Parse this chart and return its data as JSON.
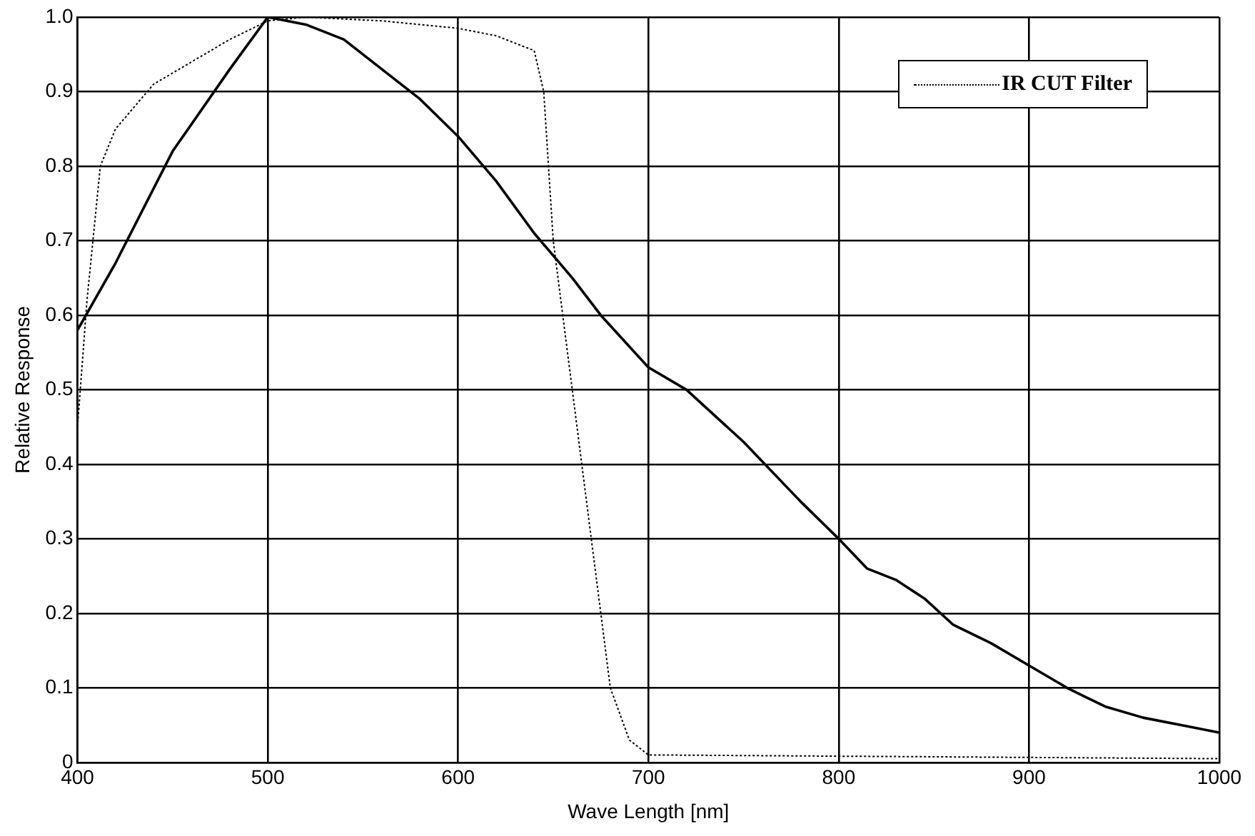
{
  "chart_data": {
    "type": "line",
    "xlabel": "Wave Length [nm]",
    "ylabel": "Relative Response",
    "xlim": [
      400,
      1000
    ],
    "xticks": [
      400,
      500,
      600,
      700,
      800,
      900,
      1000
    ],
    "ylim": [
      0,
      1
    ],
    "yticks": [
      0,
      {
        "value": 0.1,
        "label": "0.1"
      },
      {
        "value": 0.2,
        "label": "0.2"
      },
      {
        "value": 0.3,
        "label": "0.3"
      },
      {
        "value": 0.4,
        "label": "0.4"
      },
      {
        "value": 0.5,
        "label": "0.5"
      },
      {
        "value": 0.6,
        "label": "0.6"
      },
      {
        "value": 0.7,
        "label": "0.7"
      },
      {
        "value": 0.8,
        "label": "0.8"
      },
      {
        "value": 0.9,
        "label": "0.9"
      },
      {
        "value": 1,
        "label": "1.0"
      }
    ],
    "grid": true,
    "legend": "top right",
    "marker": "none",
    "series": [
      {
        "color": "#000000",
        "line_style": "solid",
        "x": [
          400,
          420,
          450,
          480,
          500,
          520,
          540,
          560,
          580,
          600,
          620,
          640,
          660,
          675,
          700,
          720,
          750,
          780,
          800,
          815,
          830,
          845,
          860,
          880,
          900,
          920,
          940,
          960,
          980,
          1000
        ],
        "values": [
          0.58,
          0.67,
          0.82,
          0.93,
          1.0,
          0.99,
          0.97,
          0.93,
          0.89,
          0.84,
          0.78,
          0.71,
          0.65,
          0.6,
          0.53,
          0.5,
          0.43,
          0.35,
          0.3,
          0.26,
          0.245,
          0.22,
          0.185,
          0.16,
          0.13,
          0.1,
          0.075,
          0.06,
          0.05,
          0.04
        ]
      },
      {
        "name": "IR CUT Filter",
        "color": "#000000",
        "line_style": "dotted",
        "x": [
          400,
          405,
          412,
          420,
          440,
          460,
          480,
          500,
          520,
          560,
          600,
          620,
          640,
          645,
          650,
          660,
          670,
          680,
          690,
          700,
          1000
        ],
        "values": [
          0.45,
          0.62,
          0.8,
          0.85,
          0.91,
          0.94,
          0.97,
          0.995,
          1.0,
          0.995,
          0.985,
          0.975,
          0.955,
          0.9,
          0.7,
          0.5,
          0.3,
          0.1,
          0.03,
          0.01,
          0.005
        ]
      }
    ]
  }
}
